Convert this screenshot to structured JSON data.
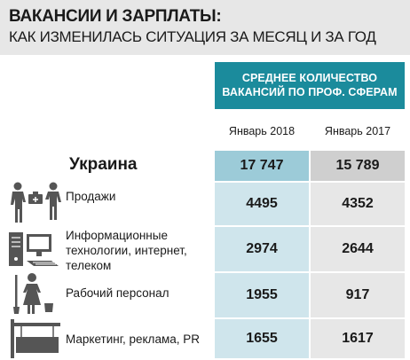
{
  "header": {
    "title": "ВАКАНСИИ И ЗАРПЛАТЫ:",
    "subtitle": "КАК ИЗМЕНИЛАСЬ СИТУАЦИЯ ЗА МЕСЯЦ И ЗА ГОД"
  },
  "table": {
    "column_group": [
      "СРЕДНЕЕ КОЛИЧЕСТВО",
      "ВАКАНСИЙ ПО ПРОФ. СФЕРАМ"
    ],
    "columns": [
      "Январь 2018",
      "Январь 2017"
    ]
  },
  "chart_data": {
    "type": "table",
    "title": "ВАКАНСИИ И ЗАРПЛАТЫ:",
    "subtitle": "КАК ИЗМЕНИЛАСЬ СИТУАЦИЯ ЗА МЕСЯЦ И ЗА ГОД",
    "columns": [
      "Январь 2018",
      "Январь 2017"
    ],
    "rows": [
      {
        "label": "Украина",
        "values": [
          "17 747",
          "15 789"
        ]
      },
      {
        "label": "Продажи",
        "values": [
          "4495",
          "4352"
        ]
      },
      {
        "label": "Информационные технологии, интернет, телеком",
        "label_lines": [
          "Информационные",
          "технологии, интернет,",
          "телеком"
        ],
        "values": [
          "2974",
          "2644"
        ]
      },
      {
        "label": "Рабочий персонал",
        "values": [
          "1955",
          "917"
        ]
      },
      {
        "label": "Маркетинг, реклама, PR",
        "values": [
          "1655",
          "1617"
        ]
      }
    ]
  },
  "icons": [
    "salespeople-icon",
    "computer-icon",
    "worker-icon",
    "signboard-icon"
  ],
  "colors": {
    "header_bg": "#e7e7e7",
    "accent": "#1b8b9c",
    "col1_cell": "#cfe5ec",
    "col1_total": "#9ccbd8",
    "col2_cell": "#e7e7e7",
    "col2_total": "#cfcfcf",
    "icon": "#555555"
  }
}
